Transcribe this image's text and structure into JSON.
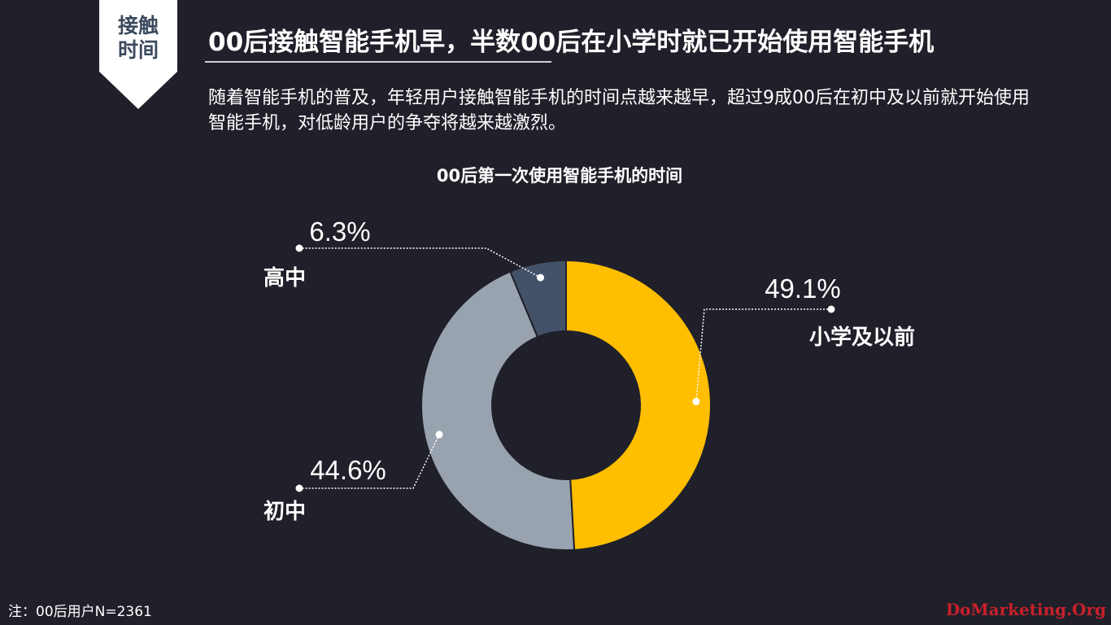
{
  "slide": {
    "tag": "接触\n时间",
    "headline": "00后接触智能手机早，半数00后在小学时就已开始使用智能手机",
    "body": "随着智能手机的普及，年轻用户接触智能手机的时间点越来越早，超过9成00后在初中及以前就开始使用智能手机，对低龄用户的争夺将越来越激烈。",
    "footnote": "注：00后用户N=2361",
    "watermark": "DoMarketing.Org"
  },
  "chart_data": {
    "type": "pie",
    "title": "00后第一次使用智能手机的时间",
    "donut": true,
    "categories": [
      "小学及以前",
      "初中",
      "高中"
    ],
    "values": [
      49.1,
      44.6,
      6.3
    ],
    "value_labels": [
      "49.1%",
      "44.6%",
      "6.3%"
    ],
    "colors": [
      "#ffbe00",
      "#99a3b0",
      "#435268"
    ],
    "start": "12 o'clock",
    "direction": "clockwise",
    "legend": "none"
  }
}
